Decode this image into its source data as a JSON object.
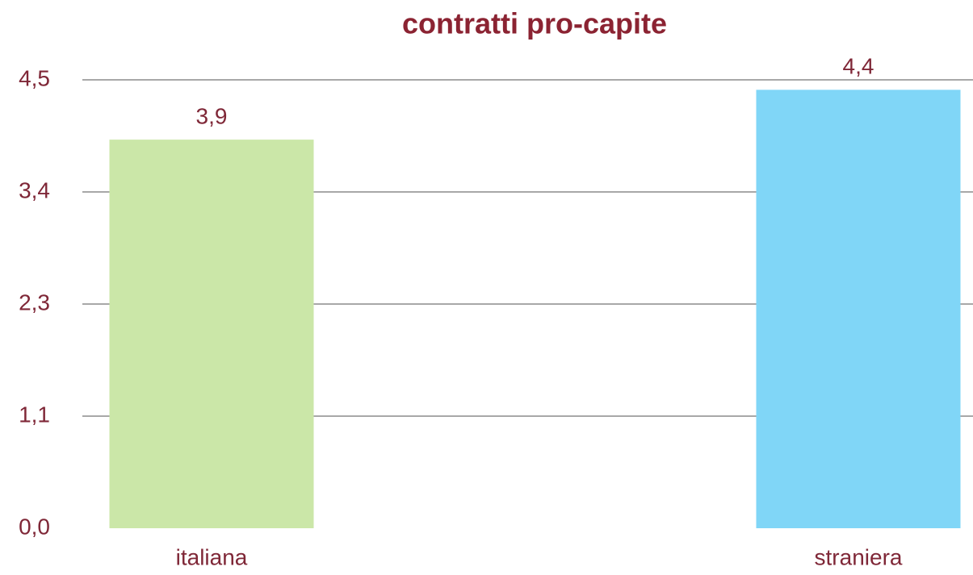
{
  "chart_data": {
    "type": "bar",
    "title": "contratti pro-capite",
    "categories": [
      "italiana",
      "straniera"
    ],
    "values": [
      3.9,
      4.4
    ],
    "value_labels": [
      "3,9",
      "4,4"
    ],
    "colors": [
      "#cbe7a8",
      "#80d6f7"
    ],
    "ylim": [
      0,
      4.5
    ],
    "yticks": [
      {
        "value": 0,
        "label": "0,0"
      },
      {
        "value": 1.125,
        "label": "1,1"
      },
      {
        "value": 2.25,
        "label": "2,3"
      },
      {
        "value": 3.375,
        "label": "3,4"
      },
      {
        "value": 4.5,
        "label": "4,5"
      }
    ],
    "grid": true
  }
}
